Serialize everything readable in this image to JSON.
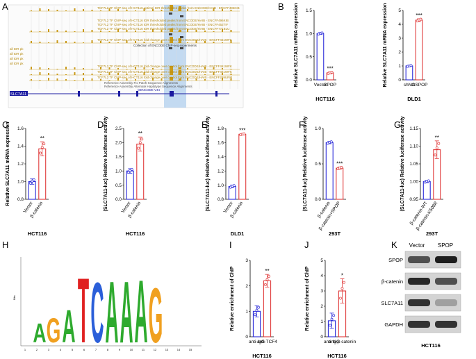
{
  "colors": {
    "blue": "#2b2bd9",
    "red": "#e03a3a",
    "genome_track": "#c99a1a",
    "highlight": "#b8d3ee",
    "gene": "#1a1aa0"
  },
  "genome_browser": {
    "label": "A",
    "gene_label": "SLC7A11",
    "track_labels": [
      "TCF7L2 TF ChIP-seq of HCT116 optimal IDR thresholded peaks from ENCODE/HAIB - ENCFF496KIB",
      "TCF7L2 TF ChIP-seq of HCT116 IDR thresholded peaks from ENCODE/HAIB - ENCFF496KIB",
      "TCF7L2 TF ChIP-seq of HCT116 IDR thresholded peaks from ENCODE/HAIB - ENCFF452TIF",
      "TCF7L2 TF ChIP-seq of HCT116 IDR thresholded peaks from ENCODE/HAIB - ENCFF771BLU",
      "TCF7L2 TF ChIP-seq of HCT116 fold change over control from ENCODE/HAIB - ENCFF461WFK",
      "Collection of ENCODE ChIP-seq experiments",
      "TCF7L2 TF ChIP-seq of HCT116 fold change over control from ENCODE/HAIB - ENCFF461WFK",
      "TCF7L2 TF ChIP-seq of HCT116 fold change over control from ENCODE/HAIB - ENCFF461WFK",
      "TCF7L2 TF ChIP-seq of HCT116 fold change over control from ENCODE/HAIB - ENCFF259URM",
      "Reference Assembly Fix Patch Sequence Alignments",
      "Reference Assembly Alternate Haplotype Sequence Alignments",
      "GENCODE V44"
    ],
    "side_labels": [
      "all IDR pk",
      "all IDR pk",
      "all IDR pk",
      "all IDR pk"
    ]
  },
  "chart_data": [
    {
      "panel": "B1",
      "label": "B",
      "type": "bar",
      "categories": [
        "Vector",
        "SPOP"
      ],
      "values": [
        1.0,
        0.15
      ],
      "error": [
        0.02,
        0.02
      ],
      "ylabel": "Relative SLC7A11 mRNA expression",
      "ylim": [
        0.0,
        1.5
      ],
      "yticks": [
        "0.0",
        "0.5",
        "1.0",
        "1.5"
      ],
      "caption": "HCT116",
      "significance": "***"
    },
    {
      "panel": "B2",
      "label": "",
      "type": "bar",
      "categories": [
        "shNC",
        "shSPOP"
      ],
      "values": [
        1.0,
        4.3
      ],
      "error": [
        0.05,
        0.1
      ],
      "ylabel": "Relative SLC7A11 mRNA expression",
      "ylim": [
        0,
        5
      ],
      "yticks": [
        "0",
        "1",
        "2",
        "3",
        "4",
        "5"
      ],
      "caption": "DLD1",
      "significance": "***"
    },
    {
      "panel": "C",
      "label": "C",
      "type": "bar",
      "categories": [
        "Vector",
        "β-catenin"
      ],
      "values": [
        1.0,
        1.37
      ],
      "error": [
        0.03,
        0.08
      ],
      "ylabel": "Relative SLC7A11 mRNA expression",
      "ylim": [
        0.8,
        1.6
      ],
      "yticks": [
        "0.8",
        "1.0",
        "1.2",
        "1.4",
        "1.6"
      ],
      "caption": "HCT116",
      "significance": "**"
    },
    {
      "panel": "D",
      "label": "D",
      "type": "bar",
      "categories": [
        "Vector",
        "β-catenin"
      ],
      "values": [
        1.0,
        1.95
      ],
      "error": [
        0.08,
        0.25
      ],
      "ylabel": "(SLC7A11-luc) Relative luciferase activity",
      "ylim": [
        0.0,
        2.5
      ],
      "yticks": [
        "0.0",
        "0.5",
        "1.0",
        "1.5",
        "2.0",
        "2.5"
      ],
      "caption": "HCT116",
      "significance": "**"
    },
    {
      "panel": "E",
      "label": "E",
      "type": "bar",
      "categories": [
        "Vector",
        "β-catenin"
      ],
      "values": [
        1.0,
        1.81
      ],
      "error": [
        0.02,
        0.01
      ],
      "ylabel": "(SLC7A11-luc) Relative luciferase activity",
      "ylim": [
        0.8,
        1.9
      ],
      "yticks": [
        "0.8",
        "1.0",
        "1.2",
        "1.4",
        "1.6",
        "1.8"
      ],
      "caption": "DLD1",
      "significance": "***"
    },
    {
      "panel": "F",
      "label": "F",
      "type": "bar",
      "categories": [
        "β-catenin",
        "β-catenin+SPOP"
      ],
      "values": [
        1.0,
        0.55
      ],
      "error": [
        0.02,
        0.02
      ],
      "ylabel": "(SLC7A11-luc) Relative luciferase activity",
      "ylim": [
        0.0,
        1.25
      ],
      "yticks": [
        "0.0",
        "0.5",
        "1.0"
      ],
      "caption": "293T",
      "significance": "***"
    },
    {
      "panel": "G",
      "label": "G",
      "type": "bar",
      "categories": [
        "β-catenin-WT",
        "β-catenin-K508R"
      ],
      "values": [
        1.0,
        1.09
      ],
      "error": [
        0.003,
        0.025
      ],
      "ylabel": "(SLC7A11-luc) Relative luciferase activity",
      "ylim": [
        0.95,
        1.15
      ],
      "yticks": [
        "0.95",
        "1.00",
        "1.05",
        "1.10",
        "1.15"
      ],
      "caption": "293T",
      "significance": "**"
    },
    {
      "panel": "I",
      "label": "I",
      "type": "bar",
      "categories": [
        "anti-IgG",
        "anti-TCF4"
      ],
      "values": [
        1.0,
        2.2
      ],
      "error": [
        0.22,
        0.25
      ],
      "ylabel": "Relative enrichment of ChIP",
      "ylim": [
        0,
        3
      ],
      "yticks": [
        "0",
        "1",
        "2",
        "3"
      ],
      "caption": "HCT116",
      "significance": "**"
    },
    {
      "panel": "J",
      "label": "J",
      "type": "bar",
      "categories": [
        "anti-IgG",
        "anti-β-catenin"
      ],
      "values": [
        1.05,
        3.0
      ],
      "error": [
        0.5,
        0.8
      ],
      "ylabel": "Relative enrichment of ChIP",
      "ylim": [
        0,
        5
      ],
      "yticks": [
        "0",
        "1",
        "2",
        "3",
        "4",
        "5"
      ],
      "caption": "HCT116",
      "significance": "*"
    }
  ],
  "motif": {
    "label": "H",
    "sequence": [
      "A",
      "G",
      "A",
      "T",
      "C",
      "A",
      "A",
      "A",
      "G"
    ],
    "axis_label": "Bits",
    "positions": [
      "1",
      "2",
      "3",
      "4",
      "5",
      "6",
      "7",
      "8",
      "9",
      "10",
      "11",
      "12",
      "13",
      "14",
      "15"
    ]
  },
  "western_blot": {
    "label": "K",
    "lanes": [
      "Vector",
      "SPOP"
    ],
    "proteins": [
      "SPOP",
      "β-catenin",
      "SLC7A11",
      "GAPDH"
    ],
    "band_intensity": [
      [
        0.7,
        0.95
      ],
      [
        0.9,
        0.7
      ],
      [
        0.85,
        0.3
      ],
      [
        0.85,
        0.85
      ]
    ],
    "caption": "HCT116"
  }
}
